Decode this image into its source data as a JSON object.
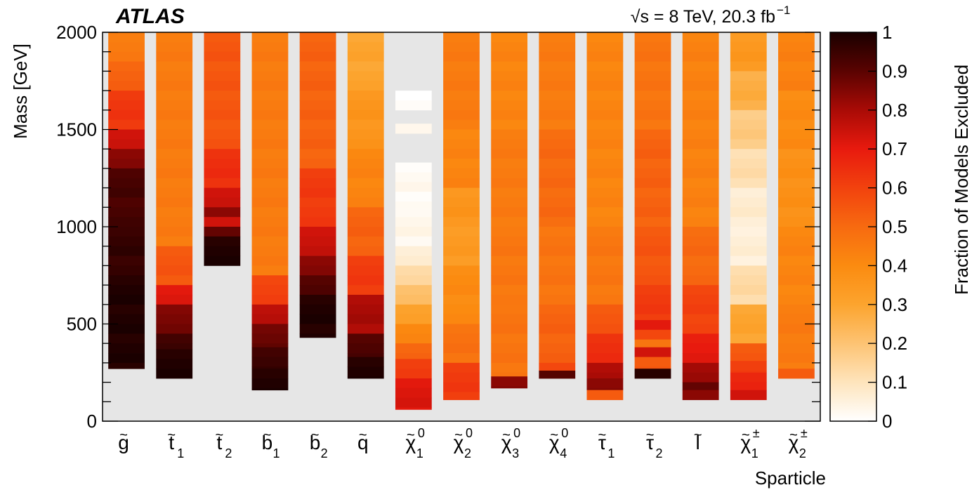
{
  "chart_data": {
    "type": "heatmap",
    "experiment": "ATLAS",
    "energy_label": "√s = 8 TeV, 20.3 fb",
    "energy_sup": "−1",
    "ylabel": "Mass [GeV]",
    "xlabel": "Sparticle",
    "colorbar_label": "Fraction of Models Excluded",
    "ylim": [
      0,
      2000
    ],
    "y_ticks": [
      "0",
      "500",
      "1000",
      "1500",
      "2000"
    ],
    "colorbar_ticks": [
      "0",
      "0.1",
      "0.2",
      "0.3",
      "0.4",
      "0.5",
      "0.6",
      "0.7",
      "0.8",
      "0.9",
      "1"
    ],
    "bin_width_gev": 50,
    "categories": [
      {
        "base": "g",
        "sub": "",
        "sup": ""
      },
      {
        "base": "t",
        "sub": "1",
        "sup": ""
      },
      {
        "base": "t",
        "sub": "2",
        "sup": ""
      },
      {
        "base": "b",
        "sub": "1",
        "sup": ""
      },
      {
        "base": "b",
        "sub": "2",
        "sup": ""
      },
      {
        "base": "q",
        "sub": "",
        "sup": ""
      },
      {
        "base": "χ",
        "sub": "1",
        "sup": "0"
      },
      {
        "base": "χ",
        "sub": "2",
        "sup": "0"
      },
      {
        "base": "χ",
        "sub": "3",
        "sup": "0"
      },
      {
        "base": "χ",
        "sub": "4",
        "sup": "0"
      },
      {
        "base": "τ",
        "sub": "1",
        "sup": ""
      },
      {
        "base": "τ",
        "sub": "2",
        "sup": ""
      },
      {
        "base": "l",
        "sub": "",
        "sup": ""
      },
      {
        "base": "χ",
        "sub": "1",
        "sup": "±"
      },
      {
        "base": "χ",
        "sub": "2",
        "sup": "±"
      }
    ],
    "columns": [
      {
        "segments": [
          [
            2000,
            1850,
            0.45
          ],
          [
            1850,
            1700,
            0.52
          ],
          [
            1700,
            1500,
            0.63
          ],
          [
            1500,
            1400,
            0.75
          ],
          [
            1400,
            1300,
            0.85
          ],
          [
            1300,
            1000,
            0.93
          ],
          [
            1000,
            750,
            0.96
          ],
          [
            750,
            270,
            0.99
          ]
        ]
      },
      {
        "segments": [
          [
            2000,
            900,
            0.45
          ],
          [
            900,
            700,
            0.55
          ],
          [
            700,
            600,
            0.72
          ],
          [
            600,
            450,
            0.86
          ],
          [
            450,
            370,
            0.95
          ],
          [
            370,
            220,
            0.99
          ]
        ]
      },
      {
        "segments": [
          [
            2000,
            1400,
            0.55
          ],
          [
            1400,
            1200,
            0.65
          ],
          [
            1200,
            1100,
            0.75
          ],
          [
            1100,
            1050,
            0.85
          ],
          [
            1050,
            1000,
            0.75
          ],
          [
            1000,
            950,
            0.9
          ],
          [
            950,
            800,
            0.99
          ]
        ]
      },
      {
        "segments": [
          [
            2000,
            750,
            0.45
          ],
          [
            750,
            600,
            0.6
          ],
          [
            600,
            500,
            0.78
          ],
          [
            500,
            380,
            0.88
          ],
          [
            380,
            270,
            0.95
          ],
          [
            270,
            160,
            0.99
          ]
        ]
      },
      {
        "segments": [
          [
            2000,
            1300,
            0.52
          ],
          [
            1300,
            1000,
            0.62
          ],
          [
            1000,
            850,
            0.75
          ],
          [
            850,
            750,
            0.85
          ],
          [
            750,
            650,
            0.92
          ],
          [
            650,
            430,
            0.99
          ]
        ]
      },
      {
        "segments": [
          [
            2000,
            1700,
            0.3
          ],
          [
            1700,
            1400,
            0.36
          ],
          [
            1400,
            1100,
            0.42
          ],
          [
            1100,
            850,
            0.52
          ],
          [
            850,
            650,
            0.62
          ],
          [
            650,
            450,
            0.8
          ],
          [
            450,
            330,
            0.92
          ],
          [
            330,
            220,
            0.99
          ]
        ]
      },
      {
        "segments": [
          [
            1700,
            1600,
            0.01
          ],
          [
            1530,
            1480,
            0.04
          ],
          [
            1330,
            1100,
            0.02
          ],
          [
            1100,
            900,
            0.03
          ],
          [
            900,
            800,
            0.07
          ],
          [
            800,
            700,
            0.14
          ],
          [
            700,
            600,
            0.22
          ],
          [
            600,
            500,
            0.32
          ],
          [
            500,
            400,
            0.42
          ],
          [
            400,
            320,
            0.52
          ],
          [
            320,
            220,
            0.62
          ],
          [
            220,
            60,
            0.72
          ]
        ]
      },
      {
        "segments": [
          [
            2000,
            1500,
            0.45
          ],
          [
            1500,
            1200,
            0.42
          ],
          [
            1200,
            1000,
            0.36
          ],
          [
            1000,
            800,
            0.34
          ],
          [
            800,
            500,
            0.4
          ],
          [
            500,
            300,
            0.48
          ],
          [
            300,
            110,
            0.62
          ]
        ]
      },
      {
        "segments": [
          [
            2000,
            1500,
            0.42
          ],
          [
            1500,
            1000,
            0.45
          ],
          [
            1000,
            600,
            0.46
          ],
          [
            600,
            230,
            0.47
          ],
          [
            230,
            170,
            0.85
          ]
        ]
      },
      {
        "segments": [
          [
            2000,
            1500,
            0.45
          ],
          [
            1500,
            1000,
            0.5
          ],
          [
            1000,
            600,
            0.47
          ],
          [
            600,
            300,
            0.52
          ],
          [
            300,
            260,
            0.6
          ],
          [
            260,
            220,
            0.92
          ]
        ]
      },
      {
        "segments": [
          [
            2000,
            1000,
            0.42
          ],
          [
            1000,
            600,
            0.46
          ],
          [
            600,
            450,
            0.55
          ],
          [
            450,
            300,
            0.65
          ],
          [
            300,
            220,
            0.8
          ],
          [
            220,
            160,
            0.85
          ],
          [
            160,
            110,
            0.55
          ]
        ]
      },
      {
        "segments": [
          [
            2000,
            1500,
            0.47
          ],
          [
            1500,
            1000,
            0.52
          ],
          [
            1000,
            700,
            0.55
          ],
          [
            700,
            520,
            0.62
          ],
          [
            520,
            470,
            0.72
          ],
          [
            470,
            420,
            0.6
          ],
          [
            420,
            380,
            0.48
          ],
          [
            380,
            330,
            0.75
          ],
          [
            330,
            270,
            0.55
          ],
          [
            270,
            220,
            0.99
          ]
        ]
      },
      {
        "segments": [
          [
            2000,
            1000,
            0.43
          ],
          [
            1000,
            700,
            0.5
          ],
          [
            700,
            450,
            0.6
          ],
          [
            450,
            300,
            0.7
          ],
          [
            300,
            200,
            0.82
          ],
          [
            200,
            160,
            0.9
          ],
          [
            160,
            110,
            0.85
          ]
        ]
      },
      {
        "segments": [
          [
            2000,
            1800,
            0.35
          ],
          [
            1800,
            1600,
            0.27
          ],
          [
            1600,
            1400,
            0.18
          ],
          [
            1400,
            1200,
            0.12
          ],
          [
            1200,
            1000,
            0.07
          ],
          [
            1000,
            800,
            0.06
          ],
          [
            800,
            600,
            0.13
          ],
          [
            600,
            400,
            0.3
          ],
          [
            400,
            310,
            0.55
          ],
          [
            310,
            250,
            0.62
          ],
          [
            250,
            160,
            0.68
          ],
          [
            160,
            110,
            0.75
          ]
        ]
      },
      {
        "segments": [
          [
            2000,
            1700,
            0.43
          ],
          [
            1700,
            1400,
            0.4
          ],
          [
            1400,
            1000,
            0.38
          ],
          [
            1000,
            600,
            0.42
          ],
          [
            600,
            270,
            0.45
          ],
          [
            270,
            220,
            0.55
          ]
        ]
      }
    ]
  }
}
